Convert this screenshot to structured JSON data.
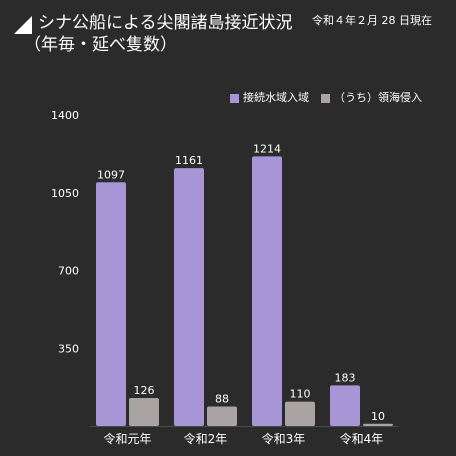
{
  "header": {
    "title_line1": "シナ公船による尖閣諸島接近状況",
    "title_line2": "（年毎・延べ隻数）",
    "date_note": "令和４年２月 28 日現在"
  },
  "legend": [
    {
      "label": "接続水域入域",
      "color": "#a795d6"
    },
    {
      "label": "（うち）領海侵入",
      "color": "#aaa3a3"
    }
  ],
  "chart_data": {
    "type": "bar",
    "categories": [
      "令和元年",
      "令和2年",
      "令和3年",
      "令和4年"
    ],
    "series": [
      {
        "name": "接続水域入域",
        "values": [
          1097,
          1161,
          1214,
          183
        ],
        "color": "#a795d6"
      },
      {
        "name": "（うち）領海侵入",
        "values": [
          126,
          88,
          110,
          10
        ],
        "color": "#aaa3a3"
      }
    ],
    "yticks": [
      "1400",
      "1050",
      "700",
      "350"
    ],
    "ylim": [
      0,
      1400
    ],
    "title": "シナ公船による尖閣諸島接近状況",
    "xlabel": "",
    "ylabel": "",
    "legend": "top-right",
    "grid": false
  }
}
